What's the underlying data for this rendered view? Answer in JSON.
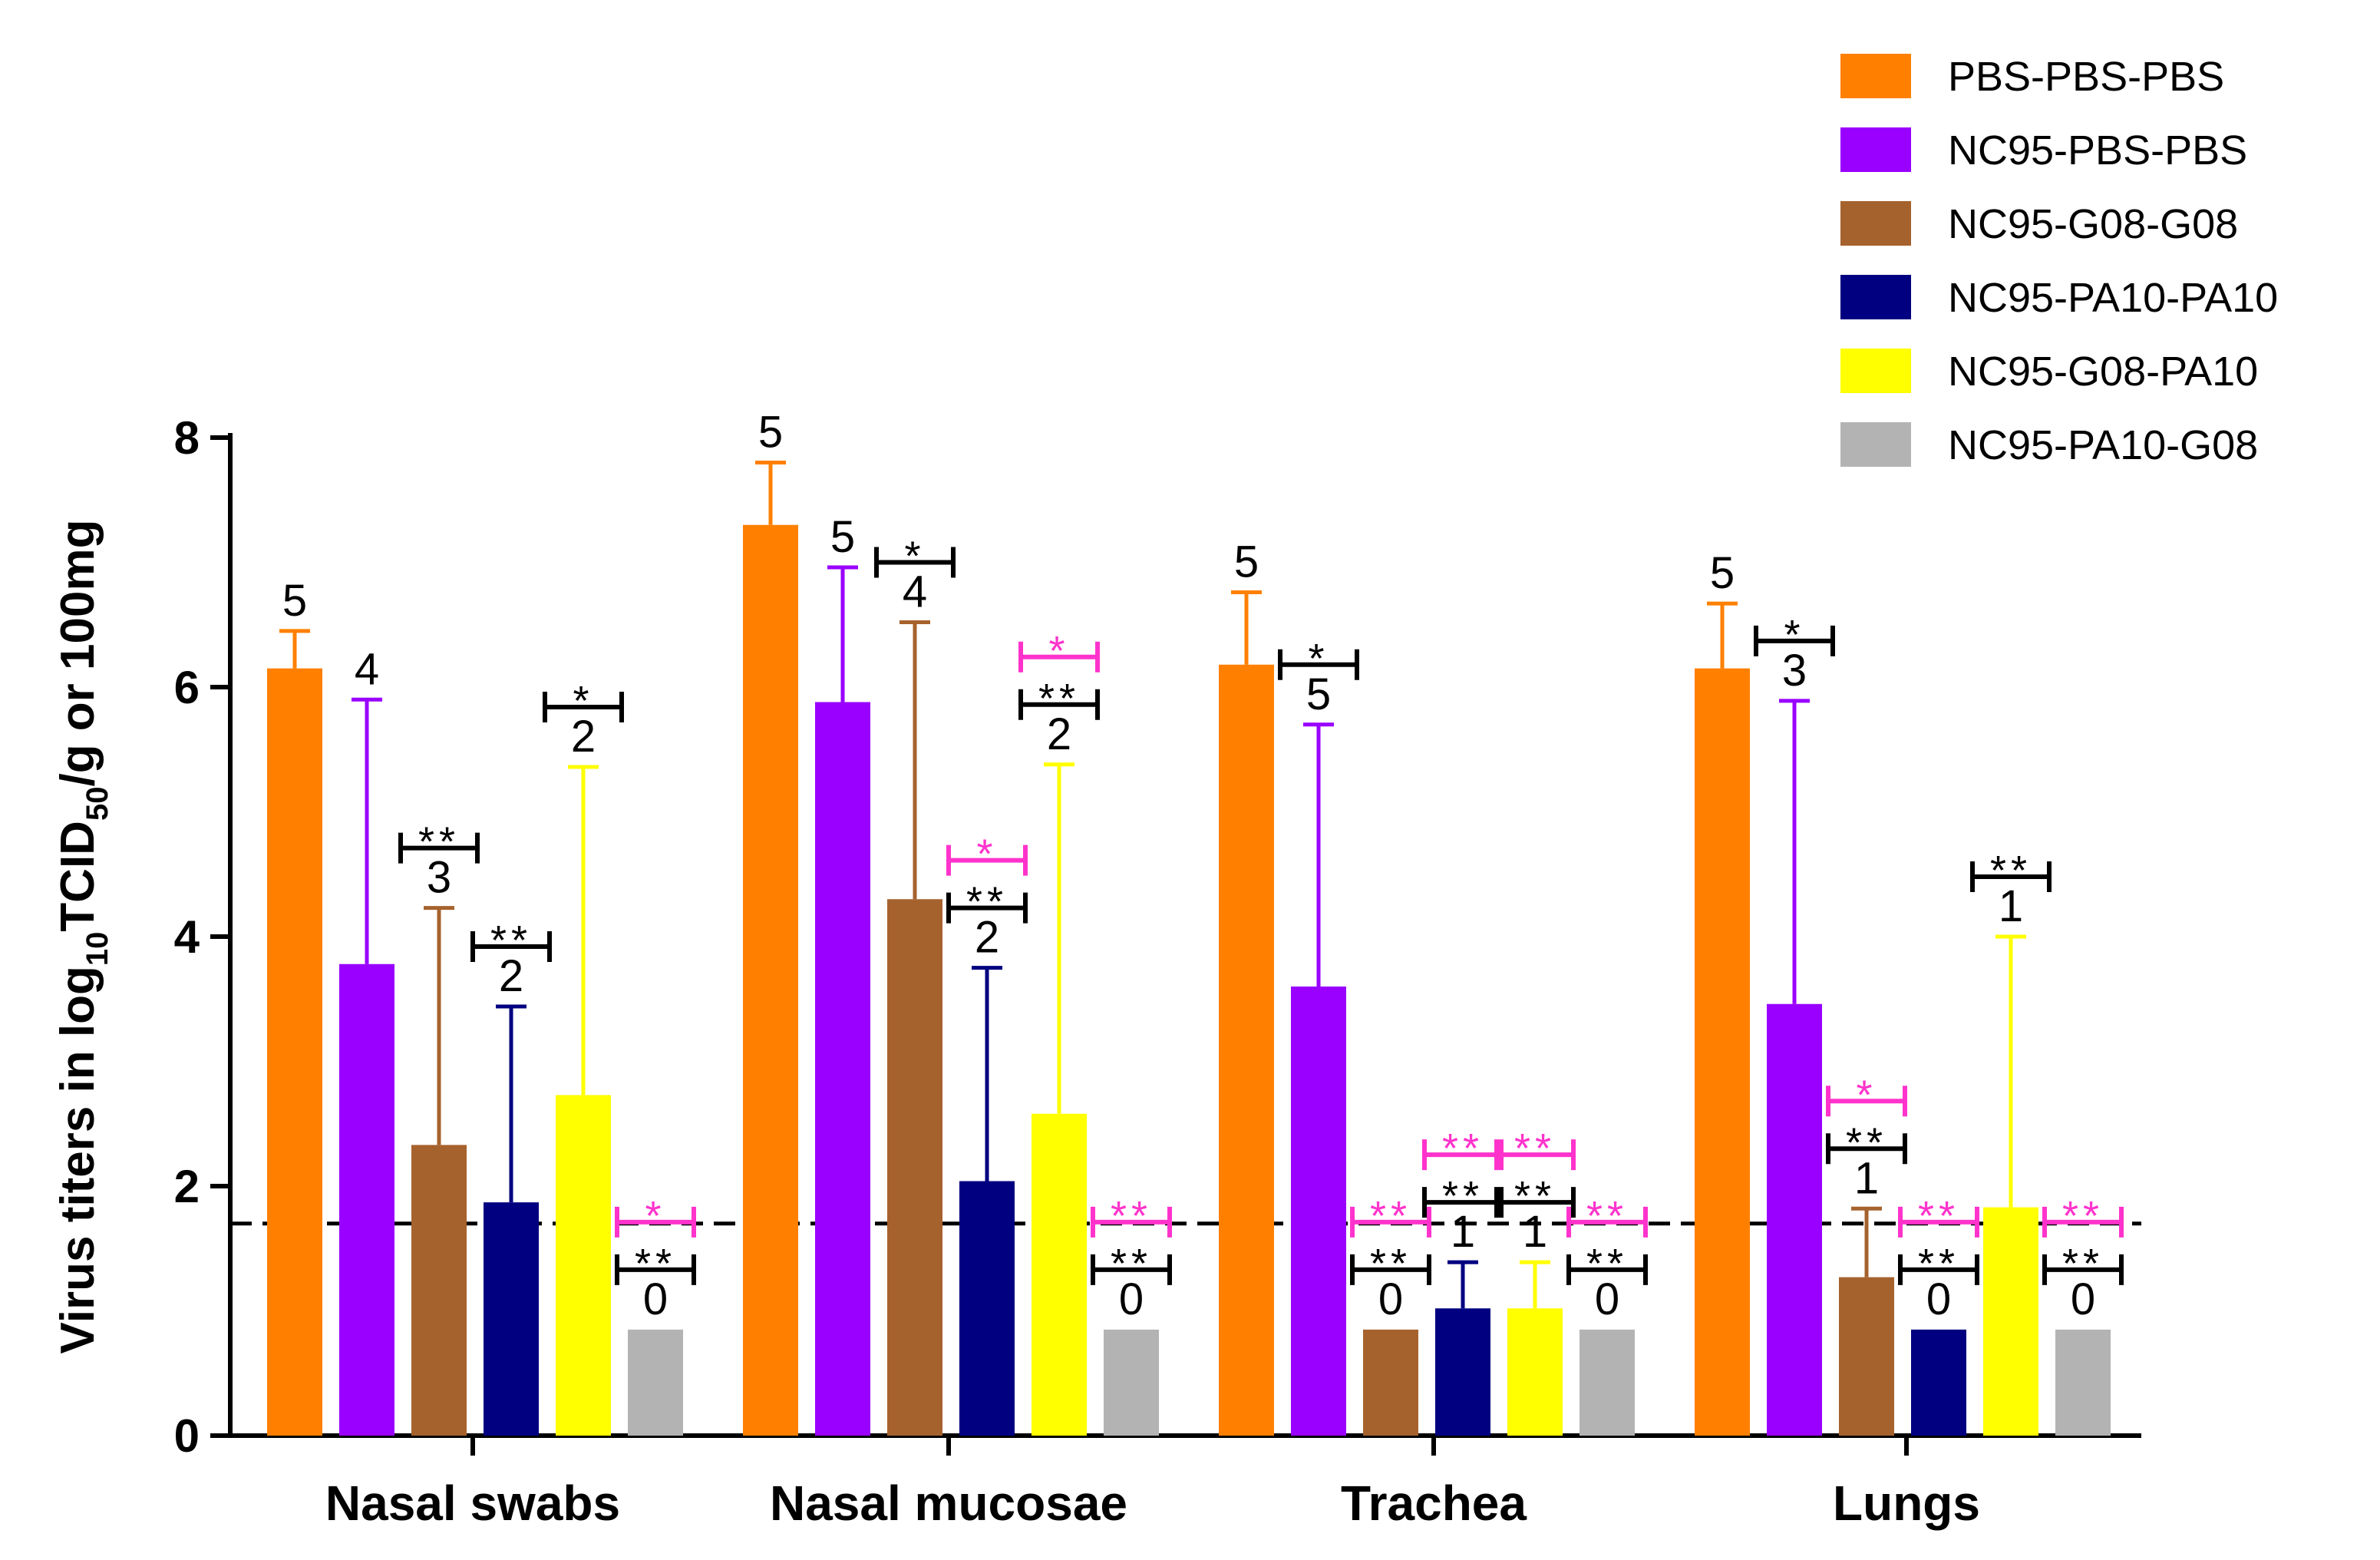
{
  "chart_data": {
    "type": "bar",
    "ylabel_prefix": "Virus titers in log",
    "ylabel_sub": "10",
    "ylabel_mid": "TCID",
    "ylabel_sub2": "50",
    "ylabel_suffix": "/g or 100mg",
    "ylim": [
      0,
      8
    ],
    "yticks": [
      "0",
      "2",
      "4",
      "6",
      "8"
    ],
    "detection_limit": 1.7,
    "categories": [
      "Nasal swabs",
      "Nasal mucosae",
      "Trachea",
      "Lungs"
    ],
    "series": [
      {
        "name": "PBS-PBS-PBS",
        "color": "#ff8000",
        "values": [
          6.15,
          7.3,
          6.18,
          6.15
        ],
        "errors": [
          0.3,
          0.5,
          0.58,
          0.52
        ]
      },
      {
        "name": "NC95-PBS-PBS",
        "color": "#9900ff",
        "values": [
          3.78,
          5.88,
          3.6,
          3.46
        ],
        "errors": [
          2.12,
          1.08,
          2.1,
          2.43
        ]
      },
      {
        "name": "NC95-G08-G08",
        "color": "#a6622d",
        "values": [
          2.33,
          4.3,
          0.85,
          1.27
        ],
        "errors": [
          1.9,
          2.22,
          0,
          0.55
        ]
      },
      {
        "name": "NC95-PA10-PA10",
        "color": "#000080",
        "values": [
          1.87,
          2.04,
          1.02,
          0.85
        ],
        "errors": [
          1.57,
          1.71,
          0.37,
          0
        ]
      },
      {
        "name": "NC95-G08-PA10",
        "color": "#ffff00",
        "values": [
          2.73,
          2.58,
          1.02,
          1.83
        ],
        "errors": [
          2.63,
          2.8,
          0.37,
          2.17
        ]
      },
      {
        "name": "NC95-PA10-G08",
        "color": "#b3b3b3",
        "values": [
          0.85,
          0.85,
          0.85,
          0.85
        ],
        "errors": [
          0,
          0,
          0,
          0
        ]
      }
    ],
    "n_labels": [
      [
        "5",
        "4",
        "3",
        "2",
        "2",
        "0"
      ],
      [
        "5",
        "5",
        "4",
        "2",
        "2",
        "0"
      ],
      [
        "5",
        "5",
        "0",
        "1",
        "1",
        "0"
      ],
      [
        "5",
        "3",
        "1",
        "0",
        "1",
        "0"
      ]
    ],
    "sig_black": [
      [
        "",
        "",
        "**",
        "**",
        "*",
        "**"
      ],
      [
        "",
        "",
        "*",
        "**",
        "**",
        "**"
      ],
      [
        "",
        "*",
        "**",
        "**",
        "**",
        "**"
      ],
      [
        "",
        "*",
        "**",
        "**",
        "**",
        "**"
      ]
    ],
    "sig_magenta": [
      [
        "",
        "",
        "",
        "",
        "",
        "*"
      ],
      [
        "",
        "",
        "",
        "*",
        "*",
        "**"
      ],
      [
        "",
        "",
        "**",
        "**",
        "**",
        "**"
      ],
      [
        "",
        "",
        "*",
        "**",
        "",
        "**"
      ]
    ],
    "sig_colors": {
      "black": "#000000",
      "magenta": "#ff33cc"
    }
  }
}
